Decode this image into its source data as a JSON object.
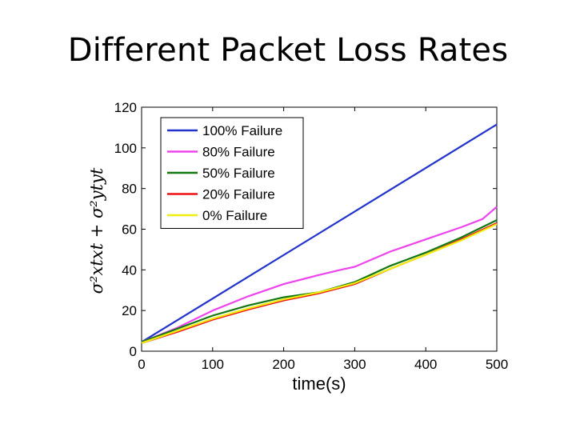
{
  "slide": {
    "title": "Different Packet Loss Rates"
  },
  "chart_data": {
    "type": "line",
    "title": "",
    "xlabel": "time(s)",
    "ylabel": "σ²xtxt + σ²ytyt",
    "xlim": [
      0,
      500
    ],
    "ylim": [
      0,
      120
    ],
    "xticks": [
      0,
      100,
      200,
      300,
      400,
      500
    ],
    "yticks": [
      0,
      20,
      40,
      60,
      80,
      100,
      120
    ],
    "grid": false,
    "legend_position": "top-left",
    "series": [
      {
        "name": "100% Failure",
        "color": "#2233cc",
        "x": [
          0,
          500
        ],
        "y": [
          4.5,
          111.5
        ]
      },
      {
        "name": "80% Failure",
        "color": "#ee44ee",
        "x": [
          0,
          50,
          100,
          150,
          200,
          250,
          280,
          300,
          350,
          400,
          450,
          480,
          500
        ],
        "y": [
          4.5,
          11.5,
          20,
          27,
          33,
          37.5,
          40,
          41.5,
          49,
          55,
          61,
          65,
          71
        ]
      },
      {
        "name": "50% Failure",
        "color": "#117711",
        "x": [
          0,
          50,
          100,
          150,
          200,
          250,
          300,
          350,
          400,
          450,
          500
        ],
        "y": [
          4.5,
          11,
          17.5,
          22.5,
          26.5,
          29,
          34,
          42,
          48.5,
          56,
          64.5
        ]
      },
      {
        "name": "20% Failure",
        "color": "#ee1111",
        "x": [
          0,
          50,
          100,
          150,
          200,
          250,
          300,
          350,
          400,
          450,
          500
        ],
        "y": [
          4,
          9.5,
          15.5,
          20.5,
          25,
          28.5,
          33,
          40.5,
          47.5,
          55,
          63
        ]
      },
      {
        "name": "0% Failure",
        "color": "#eeee11",
        "x": [
          0,
          50,
          100,
          150,
          200,
          250,
          300,
          350,
          400,
          450,
          500
        ],
        "y": [
          4,
          10,
          16,
          21,
          25.5,
          29,
          33.5,
          40.5,
          47.5,
          54.5,
          62.5
        ]
      }
    ]
  }
}
